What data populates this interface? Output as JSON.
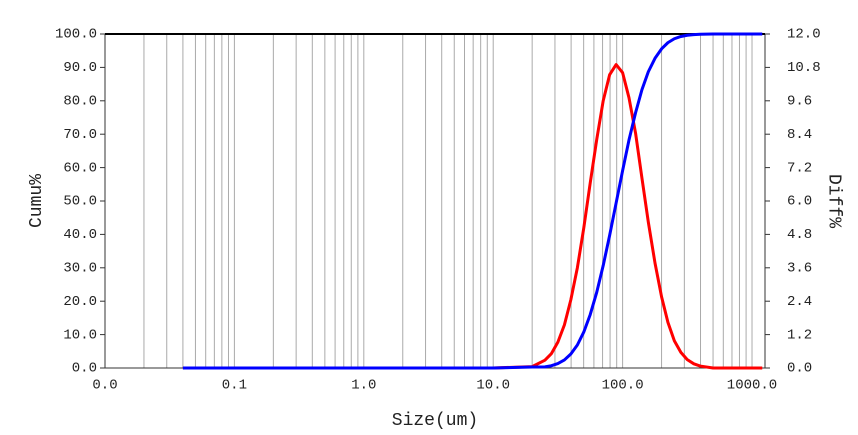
{
  "chart_data": {
    "type": "line",
    "xlabel": "Size(um)",
    "ylabel": "Cumu%",
    "y2label": "Diff%",
    "xscale": "log",
    "xgrid": true,
    "xlim": [
      0.01,
      1260
    ],
    "xticks": [
      {
        "value": 0.01,
        "label": "0.0"
      },
      0.1,
      {
        "value": 1,
        "label": "1.0"
      },
      {
        "value": 10,
        "label": "10.0"
      },
      {
        "value": 100,
        "label": "100.0"
      },
      {
        "value": 1000,
        "label": "1000.0"
      }
    ],
    "xminorticks": [
      0.02,
      0.03,
      0.04,
      0.05,
      0.06,
      0.07,
      0.08,
      0.09,
      0.2,
      0.3,
      0.4,
      0.5,
      0.6,
      0.7,
      0.8,
      0.9,
      2,
      3,
      4,
      5,
      6,
      7,
      8,
      9,
      20,
      30,
      40,
      50,
      60,
      70,
      80,
      90,
      200,
      300,
      400,
      500,
      600,
      700,
      800,
      900
    ],
    "ylim": [
      0,
      100
    ],
    "yticks": [
      {
        "value": 0,
        "label": "0.0"
      },
      {
        "value": 10,
        "label": "10.0"
      },
      {
        "value": 20,
        "label": "20.0"
      },
      {
        "value": 30,
        "label": "30.0"
      },
      {
        "value": 40,
        "label": "40.0"
      },
      {
        "value": 50,
        "label": "50.0"
      },
      {
        "value": 60,
        "label": "60.0"
      },
      {
        "value": 70,
        "label": "70.0"
      },
      {
        "value": 80,
        "label": "80.0"
      },
      {
        "value": 90,
        "label": "90.0"
      },
      {
        "value": 100,
        "label": "100.0"
      }
    ],
    "y2lim": [
      0,
      12
    ],
    "y2ticks": [
      {
        "value": 0,
        "label": "0.0"
      },
      1.2,
      2.4,
      3.6,
      4.8,
      {
        "value": 6,
        "label": "6.0"
      },
      7.2,
      8.4,
      9.6,
      10.8,
      {
        "value": 12,
        "label": "12.0"
      }
    ],
    "x": [
      0.04,
      10,
      20,
      25.1,
      28.2,
      31.6,
      35.5,
      39.8,
      44.7,
      50.1,
      56.2,
      63.1,
      70.8,
      79.4,
      89.1,
      100,
      112,
      126,
      141,
      158,
      178,
      200,
      224,
      251,
      282,
      316,
      355,
      398,
      500,
      1200
    ],
    "series": [
      {
        "color": "#0000ff",
        "values": [
          0,
          0,
          0.3,
          0.34,
          0.68,
          1.32,
          2.41,
          4.18,
          6.88,
          10.75,
          15.99,
          22.66,
          30.68,
          39.74,
          49.4,
          59.1,
          68.26,
          76.45,
          83.3,
          88.7,
          92.73,
          95.55,
          97.42,
          98.58,
          99.26,
          99.63,
          99.82,
          99.92,
          100,
          100
        ]
      },
      {
        "color": "#ff0000",
        "axis": "y2",
        "values": [
          0,
          0,
          0.05,
          0.28,
          0.52,
          0.93,
          1.55,
          2.45,
          3.6,
          5.03,
          6.65,
          8.21,
          9.6,
          10.54,
          10.9,
          10.61,
          9.71,
          8.43,
          6.83,
          5.24,
          3.77,
          2.56,
          1.64,
          0.98,
          0.56,
          0.3,
          0.15,
          0.07,
          0,
          0
        ]
      }
    ]
  }
}
